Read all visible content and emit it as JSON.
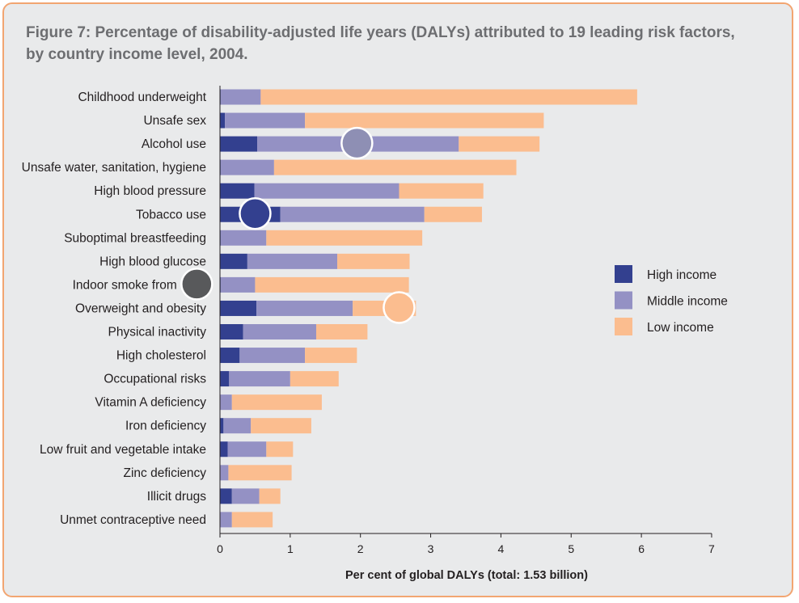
{
  "title": "Figure 7: Percentage of disability-adjusted life years (DALYs) attributed to 19 leading risk factors, by country income level, 2004.",
  "colors": {
    "panel_border": "#f2a571",
    "panel_bg": "#e9eaeb",
    "high": "#33408f",
    "middle": "#9491c4",
    "low": "#fbbd8f"
  },
  "chart_data": {
    "type": "bar",
    "orientation": "horizontal",
    "stacked": true,
    "title": "Figure 7: Percentage of disability-adjusted life years (DALYs) attributed to 19 leading risk factors, by country income level, 2004.",
    "xlabel": "Per cent of global DALYs (total: 1.53 billion)",
    "ylabel": "",
    "xlim": [
      0,
      7
    ],
    "xticks": [
      "0",
      "1",
      "2",
      "3",
      "4",
      "5",
      "6",
      "7"
    ],
    "grid": false,
    "legend_position": "right",
    "categories": [
      "Childhood underweight",
      "Unsafe sex",
      "Alcohol use",
      "Unsafe water, sanitation, hygiene",
      "High blood pressure",
      "Tobacco use",
      "Suboptimal breastfeeding",
      "High blood glucose",
      "Indoor smoke from solid",
      "Overweight and obesity",
      "Physical inactivity",
      "High cholesterol",
      "Occupational risks",
      "Vitamin A deficiency",
      "Iron deficiency",
      "Low fruit and vegetable intake",
      "Zinc deficiency",
      "Illicit drugs",
      "Unmet contraceptive need"
    ],
    "series": [
      {
        "name": "High income",
        "color": "#33408f",
        "values": [
          0.01,
          0.07,
          0.53,
          0.01,
          0.49,
          0.86,
          0.01,
          0.39,
          0.01,
          0.52,
          0.33,
          0.28,
          0.13,
          0.0,
          0.05,
          0.11,
          0.0,
          0.17,
          0.0
        ]
      },
      {
        "name": "Middle income",
        "color": "#9491c4",
        "values": [
          0.57,
          1.14,
          2.87,
          0.76,
          2.06,
          2.05,
          0.65,
          1.28,
          0.49,
          1.37,
          1.04,
          0.93,
          0.87,
          0.17,
          0.39,
          0.55,
          0.12,
          0.39,
          0.17
        ]
      },
      {
        "name": "Low income",
        "color": "#fbbd8f",
        "values": [
          5.36,
          3.4,
          1.15,
          3.45,
          1.2,
          0.82,
          2.22,
          1.03,
          2.19,
          0.9,
          0.73,
          0.74,
          0.69,
          1.28,
          0.86,
          0.38,
          0.9,
          0.3,
          0.58
        ]
      }
    ]
  },
  "legend": {
    "items": [
      {
        "label": "High income",
        "color": "#33408f"
      },
      {
        "label": "Middle income",
        "color": "#9491c4"
      },
      {
        "label": "Low income",
        "color": "#fbbd8f"
      }
    ]
  },
  "markers": [
    {
      "category": "Alcohol use",
      "value": 1.95,
      "color": "#8e8fb4"
    },
    {
      "category": "Tobacco use",
      "value": 0.5,
      "color": "#33408f"
    },
    {
      "category": "Indoor smoke from solid",
      "value": -0.33,
      "color": "#58595b"
    },
    {
      "category": "Overweight and obesity",
      "value": 2.55,
      "color": "#fbbd8f"
    }
  ]
}
